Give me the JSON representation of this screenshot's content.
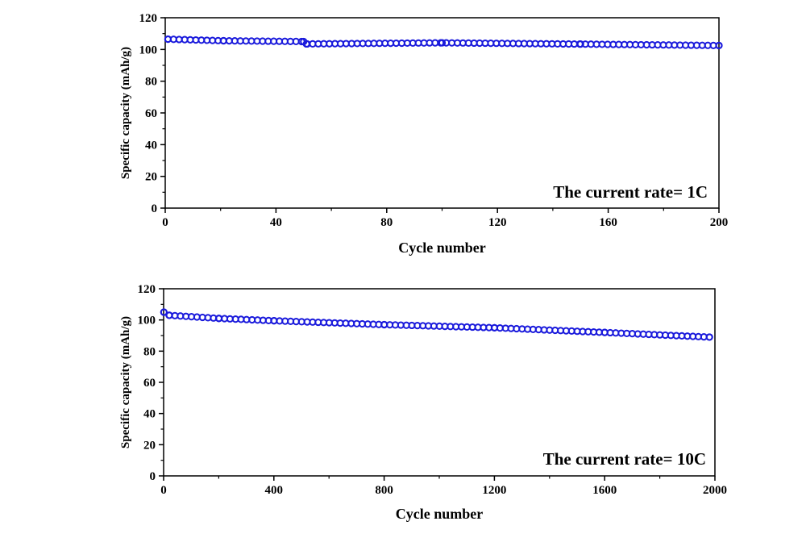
{
  "chart_data": [
    {
      "type": "scatter",
      "ylabel": "Specific capacity (mAh/g)",
      "xlabel": "Cycle number",
      "annotation": "The current rate= 1C",
      "xlim": [
        0,
        200
      ],
      "ylim": [
        0,
        120
      ],
      "xticks": [
        "0",
        "40",
        "80",
        "120",
        "160",
        "200"
      ],
      "yticks": [
        "0",
        "20",
        "40",
        "60",
        "80",
        "100",
        "120"
      ],
      "series": [
        {
          "marker_color": "#1a1adc",
          "x": [
            1,
            21,
            50,
            51,
            100,
            150,
            200
          ],
          "y": [
            106.5,
            105.5,
            105,
            103.5,
            104.2,
            103.4,
            102.5
          ]
        }
      ]
    },
    {
      "type": "scatter",
      "ylabel": "Specific capacity (mAh/g)",
      "xlabel": "Cycle number",
      "annotation": "The current rate= 10C",
      "xlim": [
        0,
        2000
      ],
      "ylim": [
        0,
        120
      ],
      "xticks": [
        "0",
        "400",
        "800",
        "1200",
        "1600",
        "2000"
      ],
      "yticks": [
        "0",
        "20",
        "40",
        "60",
        "80",
        "100",
        "120"
      ],
      "series": [
        {
          "marker_color": "#1a1adc",
          "x": [
            1,
            20,
            200,
            400,
            800,
            1200,
            1600,
            1980
          ],
          "y": [
            105,
            103,
            101,
            99.5,
            97,
            95,
            92,
            89
          ]
        }
      ]
    }
  ]
}
